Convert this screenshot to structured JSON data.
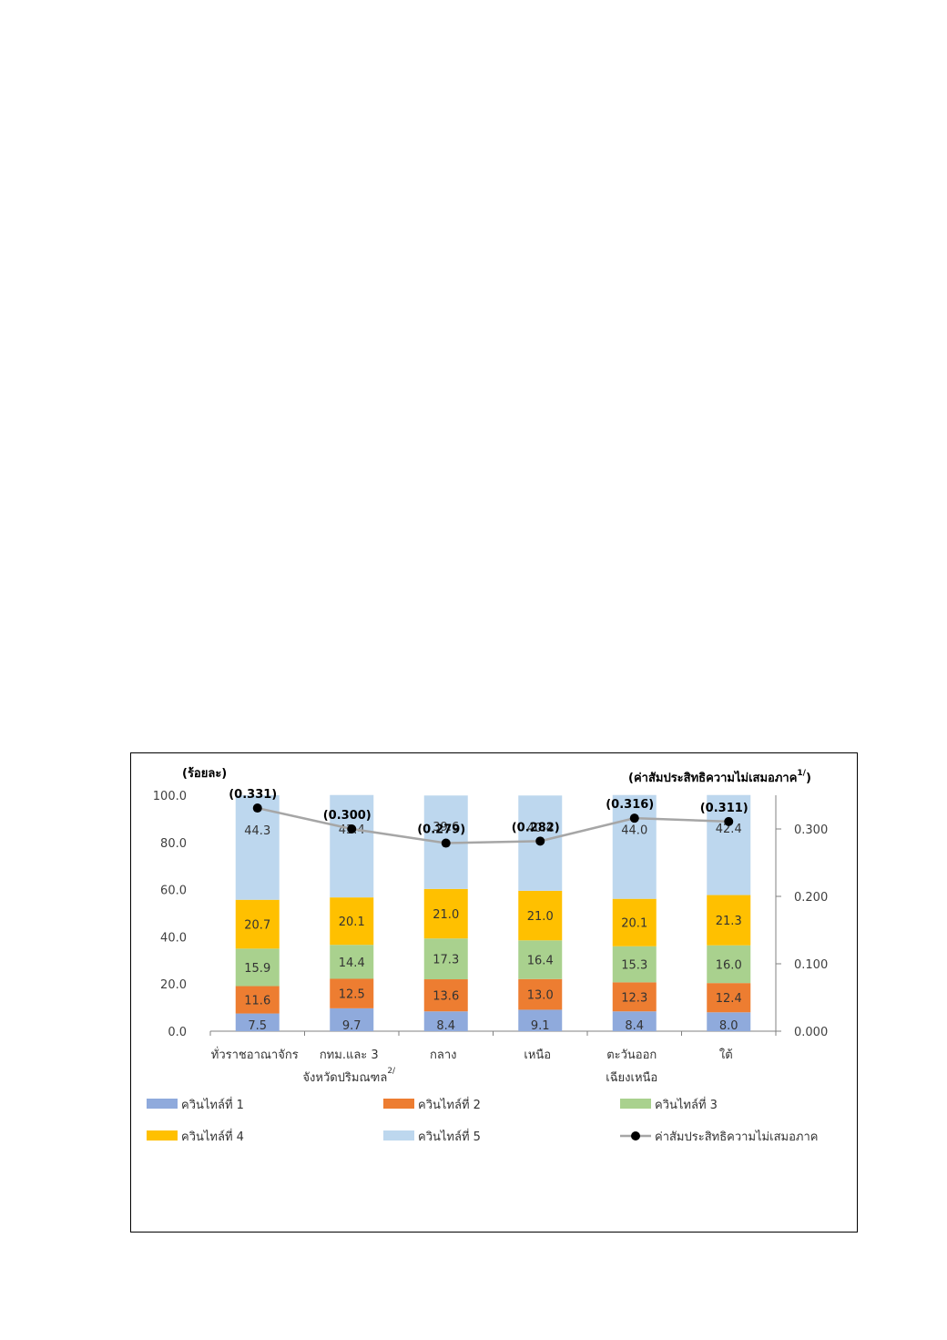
{
  "chart_data": {
    "type": "bar",
    "stacked": true,
    "left_unit": "(ร้อยละ)",
    "right_unit": "(ค่าสัมประสิทธิความไม่เสมอภาค",
    "right_unit_sup": "1/",
    "categories": [
      {
        "line1": "ทั่วราชอาณาจักร",
        "line2": "",
        "sup": ""
      },
      {
        "line1": "กทม.และ 3",
        "line2": "จังหวัดปริมณฑล",
        "sup": "2/"
      },
      {
        "line1": "กลาง",
        "line2": "",
        "sup": ""
      },
      {
        "line1": "เหนือ",
        "line2": "",
        "sup": ""
      },
      {
        "line1": "ตะวันออก",
        "line2": "เฉียงเหนือ",
        "sup": ""
      },
      {
        "line1": "ใต้",
        "line2": "",
        "sup": ""
      }
    ],
    "series": [
      {
        "name": "ควินไทล์ที่ 1",
        "color": "#8faadc",
        "values": [
          7.5,
          9.7,
          8.4,
          9.1,
          8.4,
          8.0
        ],
        "labels": [
          "7.5",
          "9.7",
          "8.4",
          "9.1",
          "8.4",
          "8.0"
        ]
      },
      {
        "name": "ควินไทล์ที่ 2",
        "color": "#ed7d31",
        "values": [
          11.6,
          12.5,
          13.6,
          13.0,
          12.3,
          12.4
        ],
        "labels": [
          "11.6",
          "12.5",
          "13.6",
          "13.0",
          "12.3",
          "12.4"
        ]
      },
      {
        "name": "ควินไทล์ที่ 3",
        "color": "#a9d18e",
        "values": [
          15.9,
          14.4,
          17.3,
          16.4,
          15.3,
          16.0
        ],
        "labels": [
          "15.9",
          "14.4",
          "17.3",
          "16.4",
          "15.3",
          "16.0"
        ]
      },
      {
        "name": "ควินไทล์ที่ 4",
        "color": "#ffc000",
        "values": [
          20.7,
          20.1,
          21.0,
          21.0,
          20.1,
          21.3
        ],
        "labels": [
          "20.7",
          "20.1",
          "21.0",
          "21.0",
          "20.1",
          "21.3"
        ]
      },
      {
        "name": "ควินไทล์ที่ 5",
        "color": "#bdd7ee",
        "values": [
          44.3,
          43.4,
          39.6,
          40.4,
          44.0,
          42.4
        ],
        "labels": [
          "44.3",
          "43.4",
          "39.6",
          "40.4",
          "44.0",
          "42.4"
        ]
      }
    ],
    "line_series": {
      "name": "ค่าสัมประสิทธิความไม่เสมอภาค",
      "color": "#a6a6a6",
      "marker_color": "#000000",
      "values": [
        0.331,
        0.3,
        0.279,
        0.282,
        0.316,
        0.311
      ],
      "labels": [
        "(0.331)",
        "(0.300)",
        "(0.279)",
        "(0.282)",
        "(0.316)",
        "(0.311)"
      ]
    },
    "left_axis": {
      "min": 0,
      "max": 100,
      "ticks": [
        "0.0",
        "20.0",
        "40.0",
        "60.0",
        "80.0",
        "100.0"
      ]
    },
    "right_axis": {
      "min": 0,
      "max": 0.35,
      "ticks": [
        "0.000",
        "0.100",
        "0.200",
        "0.300"
      ]
    },
    "legend_position": "bottom"
  }
}
